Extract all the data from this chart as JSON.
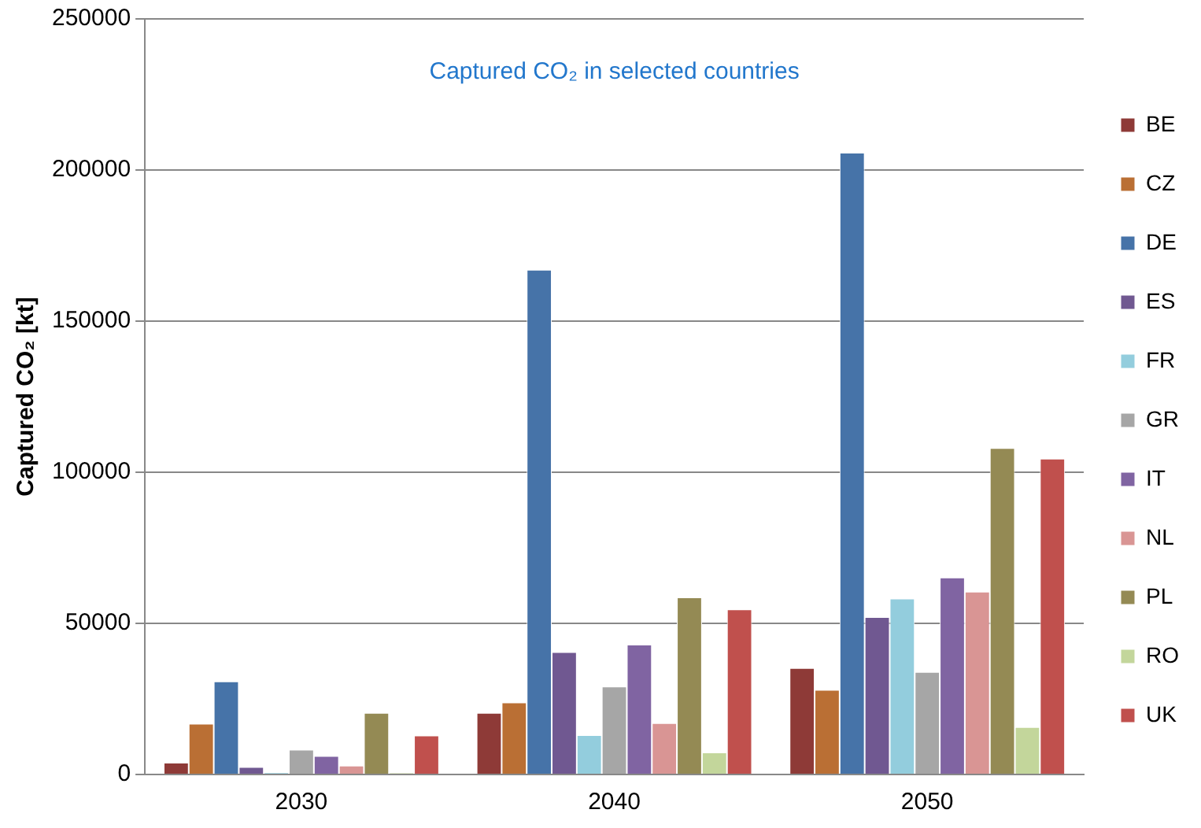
{
  "chart_data": {
    "type": "bar",
    "title": "Captured CO₂ in selected countries",
    "ylabel": "Captured CO₂ [kt]",
    "categories": [
      "2030",
      "2040",
      "2050"
    ],
    "series": [
      {
        "name": "BE",
        "color": "#8e3a37",
        "values": [
          3900,
          20400,
          35200
        ]
      },
      {
        "name": "CZ",
        "color": "#ba6f34",
        "values": [
          16800,
          23800,
          28000
        ]
      },
      {
        "name": "DE",
        "color": "#4673a8",
        "values": [
          30800,
          167000,
          205700
        ]
      },
      {
        "name": "ES",
        "color": "#705891",
        "values": [
          2500,
          40500,
          52100
        ]
      },
      {
        "name": "FR",
        "color": "#93cddd",
        "values": [
          700,
          13000,
          58200
        ]
      },
      {
        "name": "GR",
        "color": "#a6a6a6",
        "values": [
          8200,
          29100,
          33900
        ]
      },
      {
        "name": "IT",
        "color": "#8064a2",
        "values": [
          6100,
          43000,
          65200
        ]
      },
      {
        "name": "NL",
        "color": "#d99594",
        "values": [
          2900,
          17000,
          60500
        ]
      },
      {
        "name": "PL",
        "color": "#948a54",
        "values": [
          20400,
          58600,
          108000
        ]
      },
      {
        "name": "RO",
        "color": "#c3d69b",
        "values": [
          500,
          7300,
          15700
        ]
      },
      {
        "name": "UK",
        "color": "#c0504d",
        "values": [
          12900,
          54600,
          104500
        ]
      }
    ],
    "ylim": [
      0,
      250000
    ],
    "yticks": [
      0,
      50000,
      100000,
      150000,
      200000,
      250000
    ],
    "grid": "y",
    "legend": "right"
  }
}
